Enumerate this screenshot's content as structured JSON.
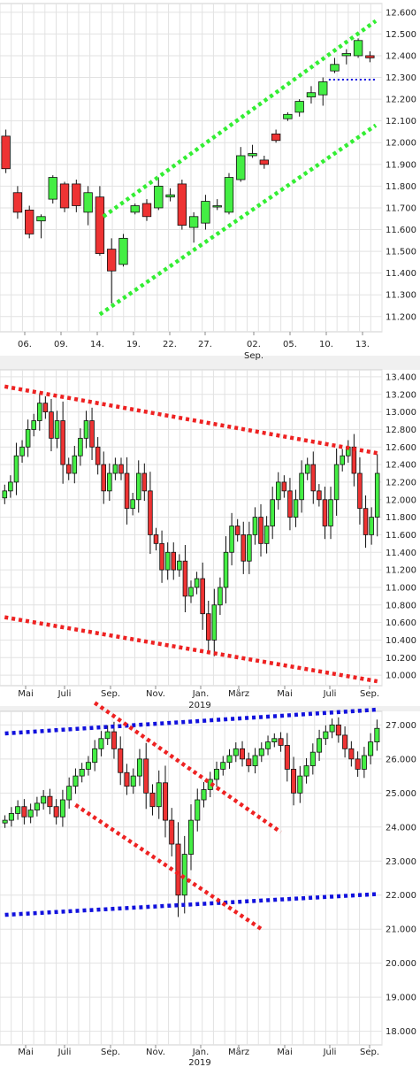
{
  "chart_data": [
    {
      "type": "candlestick",
      "period": "daily (August - September)",
      "y_ticks": [
        "11.200",
        "11.300",
        "11.400",
        "11.500",
        "11.600",
        "11.700",
        "11.800",
        "11.900",
        "12.000",
        "12.100",
        "12.200",
        "12.300",
        "12.400",
        "12.500",
        "12.600"
      ],
      "y_tick_values": [
        11200,
        11300,
        11400,
        11500,
        11600,
        11700,
        11800,
        11900,
        12000,
        12100,
        12200,
        12300,
        12400,
        12500,
        12600
      ],
      "ylim": [
        11130,
        12640
      ],
      "x_ticks": [
        "06.",
        "09.",
        "14.",
        "19.",
        "22.",
        "27.",
        "02.",
        "05.",
        "10.",
        "13."
      ],
      "x_sublabel": "Sep.",
      "grid": true,
      "candles": [
        {
          "o": 12030,
          "h": 12060,
          "l": 11860,
          "c": 11880
        },
        {
          "o": 11770,
          "h": 11800,
          "l": 11650,
          "c": 11680
        },
        {
          "o": 11690,
          "h": 11710,
          "l": 11560,
          "c": 11580
        },
        {
          "o": 11640,
          "h": 11670,
          "l": 11560,
          "c": 11660
        },
        {
          "o": 11740,
          "h": 11850,
          "l": 11720,
          "c": 11840
        },
        {
          "o": 11810,
          "h": 11820,
          "l": 11680,
          "c": 11700
        },
        {
          "o": 11810,
          "h": 11830,
          "l": 11680,
          "c": 11710
        },
        {
          "o": 11680,
          "h": 11800,
          "l": 11620,
          "c": 11770
        },
        {
          "o": 11750,
          "h": 11800,
          "l": 11480,
          "c": 11490
        },
        {
          "o": 11510,
          "h": 11560,
          "l": 11260,
          "c": 11410
        },
        {
          "o": 11440,
          "h": 11580,
          "l": 11430,
          "c": 11560
        },
        {
          "o": 11680,
          "h": 11720,
          "l": 11670,
          "c": 11710
        },
        {
          "o": 11720,
          "h": 11740,
          "l": 11640,
          "c": 11660
        },
        {
          "o": 11700,
          "h": 11840,
          "l": 11690,
          "c": 11800
        },
        {
          "o": 11750,
          "h": 11790,
          "l": 11730,
          "c": 11760
        },
        {
          "o": 11810,
          "h": 11830,
          "l": 11600,
          "c": 11620
        },
        {
          "o": 11610,
          "h": 11680,
          "l": 11540,
          "c": 11660
        },
        {
          "o": 11630,
          "h": 11760,
          "l": 11600,
          "c": 11730
        },
        {
          "o": 11710,
          "h": 11740,
          "l": 11690,
          "c": 11710
        },
        {
          "o": 11680,
          "h": 11860,
          "l": 11670,
          "c": 11840
        },
        {
          "o": 11830,
          "h": 11980,
          "l": 11820,
          "c": 11940
        },
        {
          "o": 11940,
          "h": 11990,
          "l": 11930,
          "c": 11950
        },
        {
          "o": 11920,
          "h": 11940,
          "l": 11880,
          "c": 11900
        },
        {
          "o": 12040,
          "h": 12060,
          "l": 12000,
          "c": 12010
        },
        {
          "o": 12110,
          "h": 12140,
          "l": 12100,
          "c": 12130
        },
        {
          "o": 12140,
          "h": 12200,
          "l": 12120,
          "c": 12190
        },
        {
          "o": 12210,
          "h": 12260,
          "l": 12180,
          "c": 12230
        },
        {
          "o": 12220,
          "h": 12300,
          "l": 12170,
          "c": 12280
        },
        {
          "o": 12330,
          "h": 12390,
          "l": 12320,
          "c": 12360
        },
        {
          "o": 12400,
          "h": 12430,
          "l": 12360,
          "c": 12410
        },
        {
          "o": 12400,
          "h": 12480,
          "l": 12390,
          "c": 12470
        },
        {
          "o": 12400,
          "h": 12420,
          "l": 12370,
          "c": 12390
        }
      ],
      "trend_lines": [
        {
          "color": "#33ee33",
          "style": "dotted",
          "from": {
            "i": 8.3,
            "v": 11660
          },
          "to": {
            "i": 31.5,
            "v": 12560
          }
        },
        {
          "color": "#33ee33",
          "style": "dotted",
          "from": {
            "i": 8.0,
            "v": 11210
          },
          "to": {
            "i": 31.5,
            "v": 12080
          }
        },
        {
          "color": "#0000dd",
          "style": "dotted",
          "from": {
            "i": 27.5,
            "v": 12290
          },
          "to": {
            "i": 31.5,
            "v": 12290
          }
        }
      ]
    },
    {
      "type": "candlestick",
      "period": "daily (May 2018 - September 2019)",
      "y_ticks": [
        "10.000",
        "10.200",
        "10.400",
        "10.600",
        "10.800",
        "11.000",
        "11.200",
        "11.400",
        "11.600",
        "11.800",
        "12.000",
        "12.200",
        "12.400",
        "12.600",
        "12.800",
        "13.000",
        "13.200",
        "13.400"
      ],
      "y_tick_values": [
        10000,
        10200,
        10400,
        10600,
        10800,
        11000,
        11200,
        11400,
        11600,
        11800,
        12000,
        12200,
        12400,
        12600,
        12800,
        13000,
        13200,
        13400
      ],
      "ylim": [
        9880,
        13480
      ],
      "x_ticks": [
        "Mai",
        "Juli",
        "Sep.",
        "Nov.",
        "Jan.",
        "März",
        "Mai",
        "Juli",
        "Sep."
      ],
      "x_sublabel": "2019",
      "grid": true,
      "closes": [
        12100,
        12200,
        12500,
        12600,
        12800,
        12900,
        13100,
        13000,
        12700,
        12900,
        12400,
        12300,
        12500,
        12700,
        12900,
        12600,
        12400,
        12100,
        12300,
        12400,
        12300,
        11900,
        12000,
        12300,
        12100,
        11600,
        11500,
        11200,
        11400,
        11200,
        11300,
        10900,
        11000,
        11100,
        10700,
        10400,
        10800,
        11000,
        11400,
        11700,
        11600,
        11300,
        11600,
        11800,
        11500,
        11700,
        12000,
        12200,
        12100,
        11800,
        12000,
        12300,
        12400,
        12100,
        12000,
        11700,
        12000,
        12400,
        12500,
        12600,
        12300,
        11900,
        11600,
        11800,
        12300
      ],
      "trend_lines": [
        {
          "color": "#ee2222",
          "style": "dotted",
          "from": {
            "i": 0,
            "v": 13290
          },
          "to": {
            "i": 64,
            "v": 12530
          }
        },
        {
          "color": "#ee2222",
          "style": "dotted",
          "from": {
            "i": 0,
            "v": 10660
          },
          "to": {
            "i": 64,
            "v": 9930
          }
        }
      ]
    },
    {
      "type": "candlestick",
      "period": "daily (May 2018 - September 2019)",
      "y_ticks": [
        "18.000",
        "19.000",
        "20.000",
        "21.000",
        "22.000",
        "23.000",
        "24.000",
        "25.000",
        "26.000",
        "27.000"
      ],
      "y_tick_values": [
        18000,
        19000,
        20000,
        21000,
        22000,
        23000,
        24000,
        25000,
        26000,
        27000
      ],
      "ylim": [
        17600,
        27400
      ],
      "x_ticks": [
        "Mai",
        "Juli",
        "Sep.",
        "Nov.",
        "Jan.",
        "März",
        "Mai",
        "Juli",
        "Sep."
      ],
      "x_sublabel": "2019",
      "grid": true,
      "closes": [
        24200,
        24400,
        24600,
        24300,
        24500,
        24700,
        24900,
        24600,
        24300,
        24800,
        25200,
        25500,
        25700,
        25900,
        26300,
        26600,
        26800,
        26300,
        25600,
        25200,
        25500,
        26000,
        25000,
        24600,
        25300,
        24200,
        23500,
        22000,
        23200,
        24200,
        24800,
        25100,
        25400,
        25700,
        25900,
        26100,
        26300,
        26000,
        25800,
        26100,
        26300,
        26500,
        26600,
        26400,
        25700,
        25000,
        25500,
        25800,
        26200,
        26600,
        26800,
        27000,
        26700,
        26300,
        26000,
        25700,
        26100,
        26500,
        26900
      ],
      "trend_lines": [
        {
          "color": "#1111dd",
          "style": "dotted",
          "from": {
            "i": 0,
            "v": 26750
          },
          "to": {
            "i": 58,
            "v": 27450
          }
        },
        {
          "color": "#1111dd",
          "style": "dotted",
          "from": {
            "i": 0,
            "v": 21420
          },
          "to": {
            "i": 58,
            "v": 22030
          }
        },
        {
          "color": "#ee2222",
          "style": "dotted",
          "from": {
            "i": 14,
            "v": 27650
          },
          "to": {
            "i": 43,
            "v": 23850
          }
        },
        {
          "color": "#ee2222",
          "style": "dotted",
          "from": {
            "i": 11,
            "v": 24650
          },
          "to": {
            "i": 40,
            "v": 21000
          }
        }
      ]
    }
  ],
  "colors": {
    "up": "#44ee44",
    "down": "#ee3333",
    "grid": "#e2e2e2",
    "text": "#222222"
  }
}
